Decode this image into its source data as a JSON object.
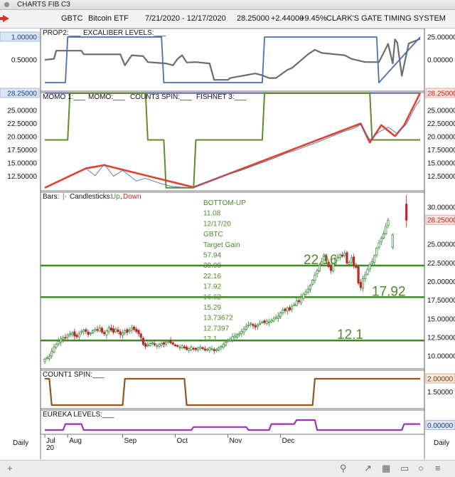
{
  "window": {
    "title": "CHARTS FIB C3"
  },
  "toolbar": {
    "symbol": "GBTC",
    "name": "Bitcoin ETF",
    "range": "7/21/2020 - 12/17/2020",
    "last": "28.25000",
    "change": "+2.44000",
    "pct": "+9.45%",
    "system": "CLARK'S GATE TIMING SYSTEM"
  },
  "timeframe": "Daily",
  "colors": {
    "blue": "#4a6fb5",
    "green": "#5a8f29",
    "red": "#e2412b",
    "gray": "#6c6c6c",
    "brown": "#93561f",
    "purple": "#9b35b5",
    "up": "#3f8f3f",
    "down": "#b82a2a"
  },
  "chart_data": [
    {
      "type": "line",
      "panel": "PROP2",
      "legend": [
        "PROP2:",
        "EXCALIBER LEVELS:"
      ],
      "left_ticks": [
        "1.00000",
        "0.50000"
      ],
      "right_ticks": [
        "25.00000",
        "0.00000"
      ],
      "series": [
        {
          "name": "PROP2",
          "color": "#6c6c6c",
          "x": [
            0,
            4,
            5,
            16,
            17,
            30,
            33,
            35,
            38,
            43,
            45,
            53,
            56,
            58,
            60,
            62,
            66,
            72,
            74,
            80,
            81,
            92,
            95,
            98,
            101,
            106,
            108,
            115,
            118,
            121,
            127,
            131,
            134,
            140,
            146,
            150,
            152,
            153,
            154,
            156,
            159,
            164
          ],
          "values": [
            0.5,
            0.52,
            0.7,
            0.7,
            0.62,
            0.62,
            0.62,
            0.38,
            0.6,
            0.58,
            0.45,
            0.42,
            0.38,
            0.52,
            0.6,
            0.44,
            0.45,
            0.42,
            0.06,
            0.06,
            0.1,
            0.2,
            0.16,
            0.1,
            0.1,
            0.28,
            0.32,
            0.62,
            0.72,
            0.65,
            0.62,
            0.6,
            0.52,
            0.45,
            0.45,
            0.85,
            0.42,
            0.95,
            0.88,
            0.15,
            0.86,
            0.96
          ]
        },
        {
          "name": "EXCALIBER LEVELS",
          "color": "#4a6fb5",
          "x": [
            0,
            9,
            10,
            51,
            52,
            95,
            96,
            145,
            146,
            164
          ],
          "values": [
            0,
            0,
            1,
            1,
            0,
            0,
            1,
            1,
            0,
            1
          ]
        }
      ]
    },
    {
      "type": "line",
      "panel": "MOMO",
      "legend": [
        "MOMO 1:",
        "MOMO:",
        "COUNT3 SPIN:",
        "FISHNET 3:"
      ],
      "left_ticks": [
        "28.25000",
        "25.00000",
        "22.50000",
        "20.00000",
        "17.50000",
        "15.00000",
        "12.50000"
      ],
      "right_ticks": [
        "28.25000",
        "25.00000",
        "22.50000",
        "20.00000",
        "17.50000",
        "15.00000",
        "12.50000"
      ],
      "ylim": [
        10.0,
        28.25
      ],
      "series": [
        {
          "name": "MOMO 1",
          "color": "#4a6fb5",
          "x": [
            0,
            164
          ],
          "values": [
            28.25,
            28.25
          ]
        },
        {
          "name": "COUNT3 SPIN",
          "color": "#5a8f29",
          "x": [
            0,
            10,
            11,
            44,
            45,
            52,
            53,
            65,
            66,
            95,
            96,
            135,
            136,
            142,
            143,
            152,
            153,
            164
          ],
          "values": [
            19.4,
            19.4,
            28.25,
            28.25,
            19.4,
            19.4,
            10.3,
            10.3,
            19.4,
            19.4,
            28.25,
            28.25,
            28.25,
            28.25,
            19.4,
            19.4,
            19.4,
            19.4
          ]
        },
        {
          "name": "MOMO",
          "color": "#e2412b",
          "x": [
            0,
            18,
            26,
            65,
            138,
            142,
            147,
            153,
            157,
            164
          ],
          "values": [
            10.3,
            14.0,
            14.6,
            10.4,
            22.5,
            18.9,
            22.2,
            20.1,
            22.2,
            28.3
          ]
        },
        {
          "name": "FISHNET 3",
          "color": "#4a6fb5",
          "x": [
            18,
            22,
            26,
            30,
            34,
            40,
            44,
            50,
            55,
            60,
            65,
            70,
            75,
            80,
            85,
            90,
            95,
            100,
            105,
            110,
            115,
            120,
            125,
            130,
            135,
            138,
            142,
            146,
            150,
            154,
            158,
            162,
            164
          ],
          "values": [
            14.0,
            12.6,
            14.8,
            12.5,
            13.6,
            11.6,
            12.1,
            11.2,
            10.6,
            10.4,
            10.3,
            11.3,
            12.1,
            12.8,
            13.5,
            14.3,
            15.1,
            15.9,
            16.8,
            17.5,
            18.3,
            19.1,
            20.0,
            20.9,
            21.6,
            22.3,
            19.4,
            20.9,
            21.8,
            20.6,
            22.4,
            25.8,
            27.0
          ]
        }
      ]
    },
    {
      "type": "candlestick",
      "panel": "PRICE",
      "legend": {
        "bars": "Bars:",
        "bars_val": "|-",
        "candles": "Candlesticks:",
        "up": "Up",
        "sep": ",",
        "down": "Down"
      },
      "annotation_lines": [
        "BOTTOM-UP",
        "11.08",
        "12/17/20",
        "GBTC",
        "Target Gain",
        "57.94",
        "39.99",
        "22.16",
        "17.92",
        "16.62",
        "15.29",
        "13.73672",
        "12.7397",
        "12.1"
      ],
      "levels": [
        {
          "value": 22.16,
          "label": "22.16"
        },
        {
          "value": 17.92,
          "label": "17.92"
        },
        {
          "value": 12.1,
          "label": "12.1"
        }
      ],
      "right_ticks": [
        "30.00000",
        "28.25000",
        "25.00000",
        "22.50000",
        "20.00000",
        "17.50000",
        "15.00000",
        "12.50000",
        "10.00000"
      ],
      "last_price": "28.25000",
      "ylim": [
        8.3,
        32.0
      ],
      "x": [
        0,
        1,
        2,
        3,
        4,
        5,
        6,
        7,
        8,
        9,
        10,
        11,
        12,
        13,
        14,
        15,
        16,
        17,
        18,
        19,
        20,
        21,
        22,
        23,
        24,
        25,
        26,
        27,
        28,
        29,
        30,
        31,
        32,
        33,
        34,
        35,
        36,
        37,
        38,
        39,
        40,
        41,
        42,
        43,
        44,
        45,
        46,
        47,
        48,
        49,
        50,
        51,
        52,
        53,
        54,
        55,
        56,
        57,
        58,
        59,
        60,
        61,
        62,
        63,
        64,
        65,
        66,
        67,
        68,
        69,
        70,
        71,
        72,
        73,
        74,
        75,
        76,
        77,
        78,
        79,
        80,
        81,
        82,
        83,
        84,
        85,
        86,
        87,
        88,
        89,
        90,
        91,
        92,
        93,
        94,
        95,
        96,
        97,
        98,
        99,
        100,
        101,
        102,
        103,
        104,
        105,
        106,
        107,
        108,
        109,
        110,
        111,
        112,
        113,
        114,
        115,
        116,
        117,
        118,
        119,
        120,
        121,
        122,
        123,
        124,
        125,
        126,
        127,
        128,
        129,
        130,
        131,
        132,
        133,
        134,
        135,
        136,
        137,
        138,
        139,
        140,
        141,
        142,
        143,
        144,
        145,
        146,
        147,
        148,
        149,
        150,
        151,
        152,
        153,
        154,
        155,
        156,
        157,
        158,
        159,
        160,
        161,
        162,
        163,
        164
      ],
      "close": [
        9.6,
        9.8,
        10.0,
        10.6,
        11.2,
        11.6,
        12.0,
        12.3,
        12.5,
        12.4,
        12.8,
        13.0,
        13.1,
        12.7,
        12.6,
        13.0,
        13.3,
        13.5,
        13.3,
        12.9,
        13.1,
        13.4,
        13.6,
        13.5,
        13.8,
        13.2,
        13.0,
        13.4,
        13.8,
        13.5,
        13.2,
        13.6,
        13.3,
        12.9,
        13.1,
        13.4,
        13.2,
        13.5,
        13.8,
        13.6,
        13.3,
        13.0,
        12.5,
        11.6,
        11.3,
        11.5,
        11.7,
        11.8,
        11.5,
        11.4,
        11.6,
        11.7,
        11.6,
        11.9,
        12.0,
        11.8,
        11.6,
        11.5,
        11.3,
        11.2,
        11.4,
        11.1,
        10.9,
        11.0,
        11.2,
        11.0,
        10.9,
        11.1,
        11.2,
        11.0,
        10.8,
        10.9,
        11.1,
        11.0,
        10.7,
        10.9,
        11.1,
        11.3,
        11.6,
        11.9,
        12.1,
        12.3,
        12.6,
        12.7,
        12.9,
        13.0,
        13.3,
        13.6,
        14.0,
        14.2,
        14.4,
        14.1,
        13.9,
        14.2,
        14.4,
        14.6,
        14.5,
        14.7,
        14.6,
        14.8,
        15.0,
        15.2,
        15.4,
        15.8,
        16.2,
        16.1,
        16.5,
        16.2,
        16.7,
        16.9,
        17.4,
        17.3,
        17.9,
        18.3,
        18.6,
        19.0,
        19.5,
        20.2,
        20.9,
        21.5,
        22.2,
        22.7,
        23.6,
        22.8,
        22.0,
        21.5,
        22.4,
        23.0,
        23.3,
        23.6,
        23.4,
        23.8,
        22.5,
        22.6,
        23.2,
        22.2,
        21.9,
        19.8,
        19.2,
        20.4,
        20.9,
        21.6,
        22.3,
        22.7,
        23.5,
        24.5,
        25.2,
        25.8,
        26.4,
        27.4,
        28.25,
        28.25,
        28.25,
        28.25,
        28.25,
        28.25,
        28.25,
        28.25,
        28.25,
        28.25,
        28.25,
        28.25,
        28.25,
        28.25,
        28.25
      ]
    },
    {
      "type": "line",
      "panel": "COUNT1 SPIN",
      "legend": [
        "COUNT1 SPIN:"
      ],
      "right_ticks": [
        "2.00000",
        "1.50000"
      ],
      "series": [
        {
          "name": "COUNT1 SPIN",
          "color": "#93561f",
          "x": [
            0,
            2,
            3,
            34,
            35,
            61,
            62,
            117,
            118,
            164
          ],
          "values": [
            2,
            2,
            1,
            1,
            2,
            2,
            1,
            1,
            2,
            2
          ]
        }
      ]
    },
    {
      "type": "line",
      "panel": "EUREKA LEVELS",
      "legend": [
        "EUREKA LEVELS:"
      ],
      "right_ticks": [
        "0.00000"
      ],
      "series": [
        {
          "name": "EUREKA LEVELS",
          "color": "#9b35b5",
          "x": [
            0,
            8,
            9,
            16,
            17,
            64,
            65,
            88,
            89,
            98,
            99,
            109,
            110,
            118,
            119,
            156,
            157,
            164
          ],
          "values": [
            0,
            0,
            0.6,
            0.6,
            0,
            0,
            0.3,
            0.3,
            0,
            0,
            0.6,
            0.6,
            1,
            1,
            0,
            0,
            0.6,
            0.6
          ]
        }
      ]
    }
  ],
  "x_axis": {
    "labels": [
      "Jul",
      "Aug",
      "Sep",
      "Oct",
      "Nov",
      "Dec"
    ],
    "year": "20",
    "label_x": [
      0,
      10,
      34,
      57,
      80,
      103
    ]
  }
}
